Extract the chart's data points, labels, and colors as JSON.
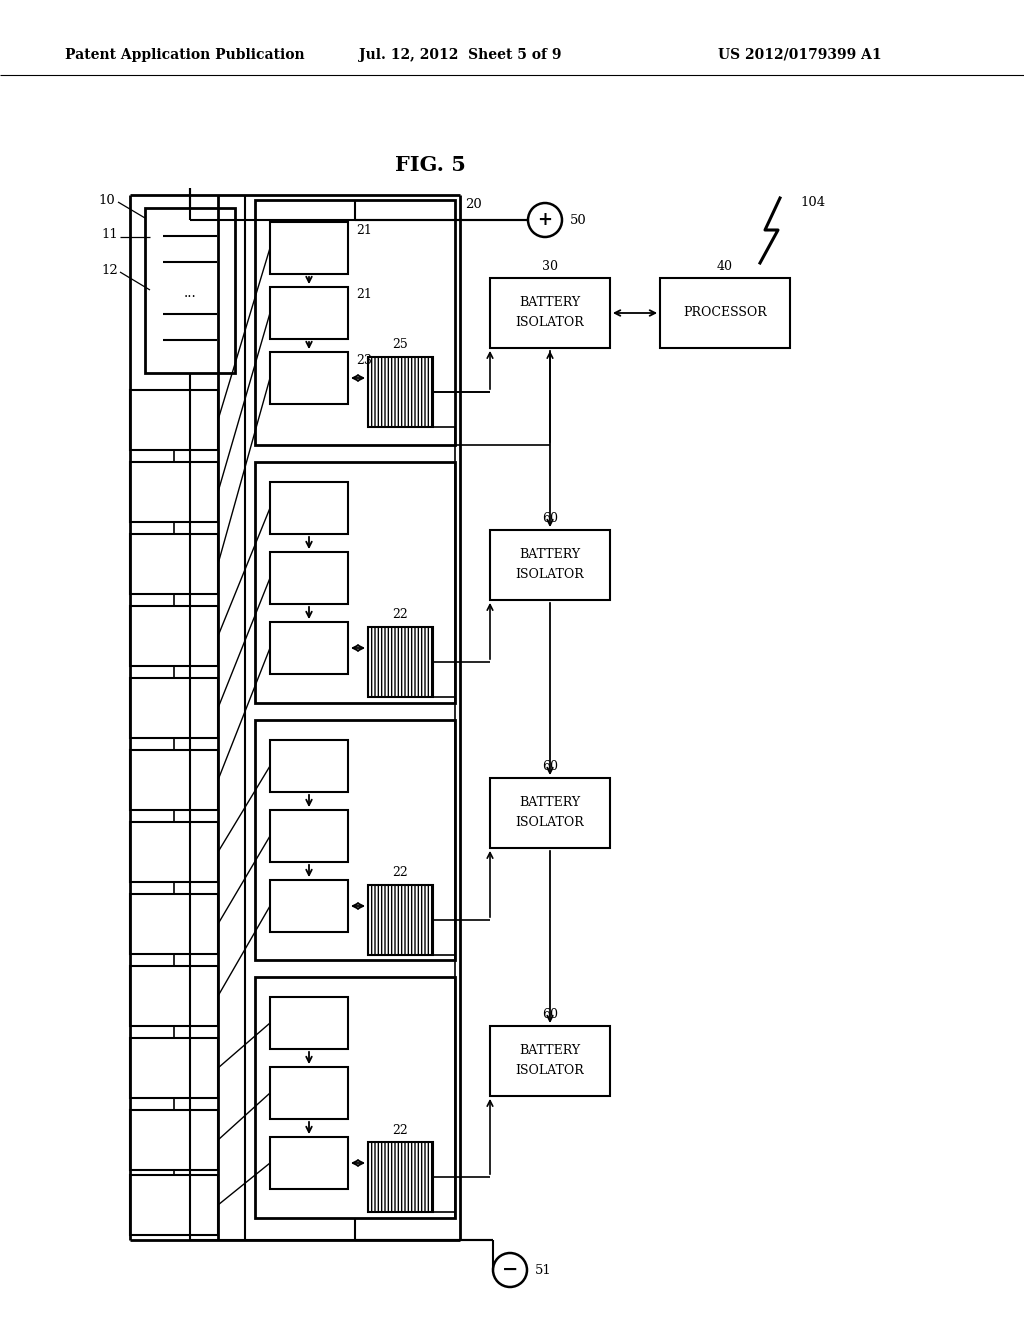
{
  "bg_color": "#ffffff",
  "header_left": "Patent Application Publication",
  "header_center": "Jul. 12, 2012  Sheet 5 of 9",
  "header_right": "US 2012/0179399 A1",
  "fig_title": "FIG. 5",
  "text_bi30": "BATTERY\nISOLATOR",
  "text_proc": "PROCESSOR",
  "text_bi60": "BATTERY\nISOLATOR",
  "lbl_10": "10",
  "lbl_11": "11",
  "lbl_12": "12",
  "lbl_20": "20",
  "lbl_21a": "21",
  "lbl_21b": "21",
  "lbl_23": "23",
  "lbl_25": "25",
  "lbl_22": "22",
  "lbl_30": "30",
  "lbl_40": "40",
  "lbl_50": "50",
  "lbl_51": "51",
  "lbl_60": "60",
  "lbl_104": "104"
}
